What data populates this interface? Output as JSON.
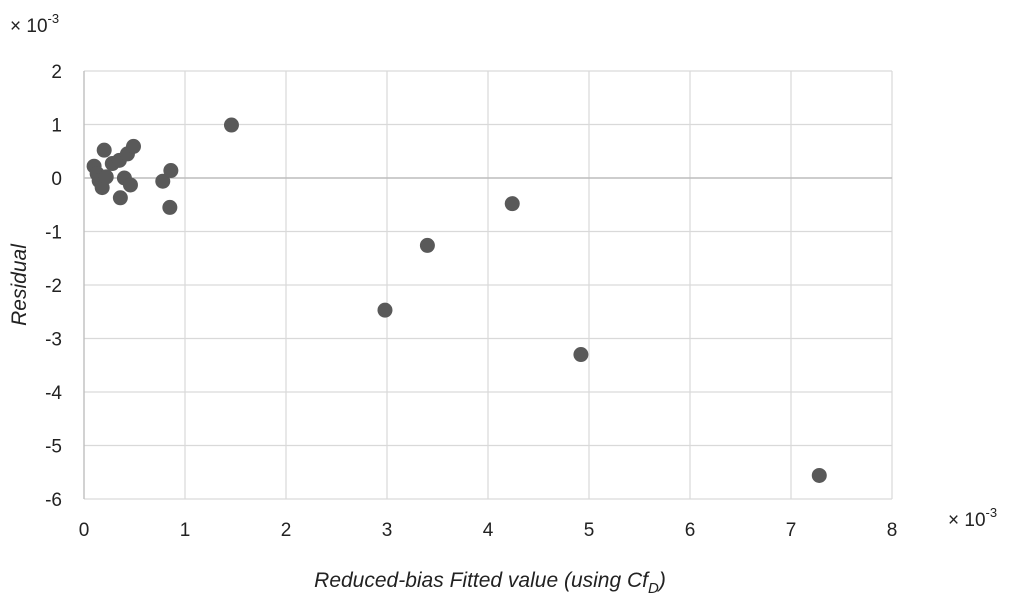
{
  "chart_data": {
    "type": "scatter",
    "title": "",
    "xlabel": "Reduced-bias Fitted value (using Cf",
    "xlabel_subscript": "D",
    "xlabel_suffix": ")",
    "ylabel": "Residual",
    "x_multiplier": {
      "base": "× 10",
      "exp": "-3"
    },
    "y_multiplier": {
      "base": "× 10",
      "exp": "-3"
    },
    "xlim": [
      0,
      8
    ],
    "ylim": [
      -6,
      2
    ],
    "xticks": [
      "0",
      "1",
      "2",
      "3",
      "4",
      "5",
      "6",
      "7",
      "8"
    ],
    "yticks": [
      "2",
      "1",
      "0",
      "-1",
      "-2",
      "-3",
      "-4",
      "-5",
      "-6"
    ],
    "grid": true,
    "legend": "none",
    "marker_color": "#595959",
    "grid_color": "#d9d9d9",
    "points": [
      {
        "x": 0.1,
        "y": 0.22
      },
      {
        "x": 0.13,
        "y": 0.08
      },
      {
        "x": 0.15,
        "y": -0.05
      },
      {
        "x": 0.18,
        "y": -0.18
      },
      {
        "x": 0.2,
        "y": 0.52
      },
      {
        "x": 0.22,
        "y": 0.02
      },
      {
        "x": 0.28,
        "y": 0.27
      },
      {
        "x": 0.35,
        "y": 0.33
      },
      {
        "x": 0.36,
        "y": -0.37
      },
      {
        "x": 0.4,
        "y": 0.0
      },
      {
        "x": 0.43,
        "y": 0.45
      },
      {
        "x": 0.46,
        "y": -0.13
      },
      {
        "x": 0.49,
        "y": 0.59
      },
      {
        "x": 0.78,
        "y": -0.06
      },
      {
        "x": 0.85,
        "y": -0.55
      },
      {
        "x": 0.86,
        "y": 0.14
      },
      {
        "x": 1.46,
        "y": 0.99
      },
      {
        "x": 2.98,
        "y": -2.47
      },
      {
        "x": 3.4,
        "y": -1.26
      },
      {
        "x": 4.24,
        "y": -0.48
      },
      {
        "x": 4.92,
        "y": -3.3
      },
      {
        "x": 7.28,
        "y": -5.56
      }
    ]
  }
}
